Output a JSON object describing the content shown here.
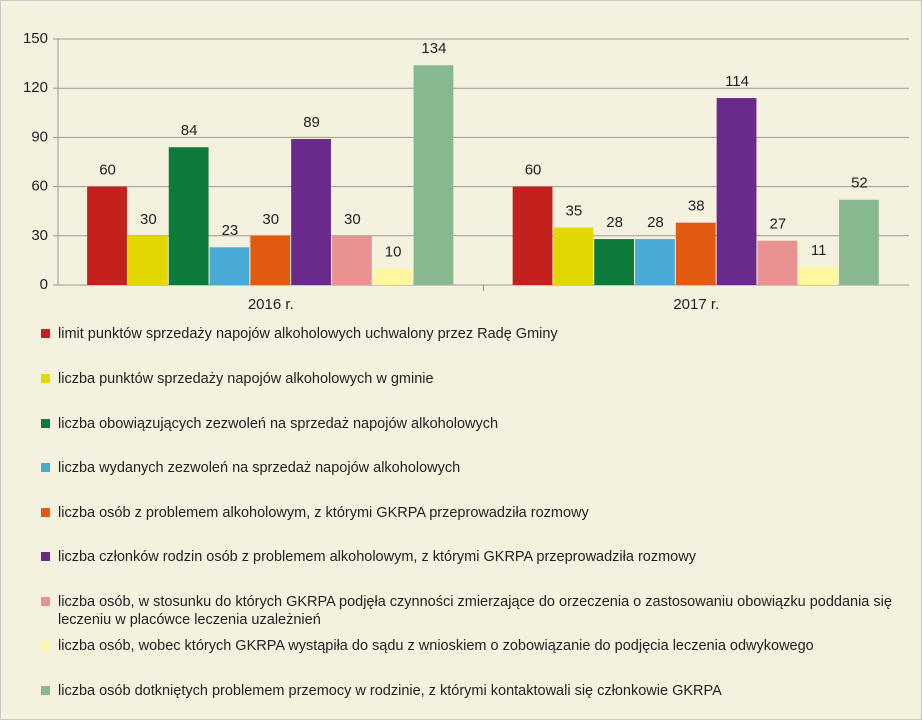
{
  "chart_data": {
    "type": "bar",
    "categories": [
      "2016 r.",
      "2017 r."
    ],
    "series": [
      {
        "name": "limit punktów sprzedaży napojów alkoholowych uchwalony przez Radę Gminy",
        "color": "#c4201e",
        "values": [
          60,
          60
        ]
      },
      {
        "name": "liczba punktów sprzedaży napojów alkoholowych w gminie",
        "color": "#e2d800",
        "values": [
          30,
          35
        ]
      },
      {
        "name": "liczba obowiązujących zezwoleń na sprzedaż napojów alkoholowych",
        "color": "#0b7a3a",
        "values": [
          84,
          28
        ]
      },
      {
        "name": "liczba wydanych zezwoleń na sprzedaż napojów alkoholowych",
        "color": "#4aaad6",
        "values": [
          23,
          28
        ]
      },
      {
        "name": "liczba osób z problemem alkoholowym, z którymi GKRPA przeprowadziła rozmowy",
        "color": "#e25a10",
        "values": [
          30,
          38
        ]
      },
      {
        "name": "liczba członków rodzin osób z problemem alkoholowym, z którymi GKRPA przeprowadziła rozmowy",
        "color": "#6a2a8c",
        "values": [
          89,
          114
        ]
      },
      {
        "name": "liczba osób, w stosunku do których GKRPA podjęła czynności zmierzające do orzeczenia o zastosowaniu obowiązku poddania się leczeniu w placówce leczenia uzależnień",
        "color": "#e89292",
        "values": [
          30,
          27
        ]
      },
      {
        "name": "liczba osób, wobec których GKRPA wystąpiła do sądu z wnioskiem o zobowiązanie do podjęcia leczenia odwykowego",
        "color": "#fff7a0",
        "values": [
          10,
          11
        ]
      },
      {
        "name": "liczba osób dotkniętych problemem przemocy w rodzinie, z którymi kontaktowali się członkowie GKRPA",
        "color": "#88b890",
        "values": [
          134,
          52
        ]
      }
    ],
    "ylim": [
      0,
      150
    ],
    "yticks": [
      0,
      30,
      60,
      90,
      120,
      150
    ],
    "grid": true,
    "legend": "bottom"
  }
}
